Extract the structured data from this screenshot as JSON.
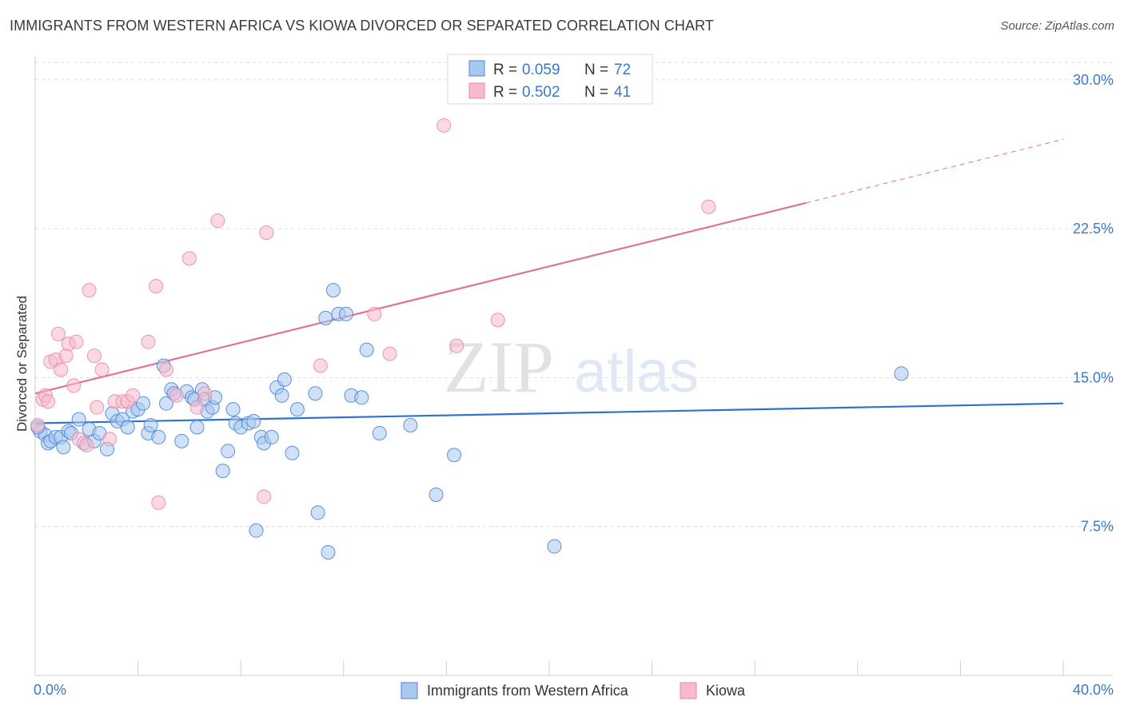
{
  "header": {
    "title": "IMMIGRANTS FROM WESTERN AFRICA VS KIOWA DIVORCED OR SEPARATED CORRELATION CHART",
    "source": "Source: ZipAtlas.com"
  },
  "watermark": {
    "zip": "ZIP",
    "atlas": "atlas"
  },
  "legend": {
    "rows": [
      {
        "r_label": "R = ",
        "r_value": "0.059",
        "n_label": "N = ",
        "n_value": "72"
      },
      {
        "r_label": "R = ",
        "r_value": "0.502",
        "n_label": "N = ",
        "n_value": "41"
      }
    ]
  },
  "chart_data": {
    "type": "scatter",
    "title": "IMMIGRANTS FROM WESTERN AFRICA VS KIOWA DIVORCED OR SEPARATED CORRELATION CHART",
    "xlabel": "",
    "ylabel": "Divorced or Separated",
    "xlim": [
      0,
      40
    ],
    "ylim": [
      0,
      31.2
    ],
    "x_tick_labels": [
      {
        "value": 0,
        "label": "0.0%"
      },
      {
        "value": 40,
        "label": "40.0%"
      }
    ],
    "y_tick_labels": [
      {
        "value": 7.5,
        "label": "7.5%"
      },
      {
        "value": 15.0,
        "label": "15.0%"
      },
      {
        "value": 22.5,
        "label": "22.5%"
      },
      {
        "value": 30.0,
        "label": "30.0%"
      }
    ],
    "grid": true,
    "legend_position": "top-center",
    "colors": {
      "blue_fill": "#a9c8f0",
      "blue_stroke": "#4a86d8",
      "blue_line": "#2f72cc",
      "pink_fill": "#f7b9cc",
      "pink_stroke": "#e88aa8",
      "pink_line": "#e0719a"
    },
    "series": [
      {
        "name": "Immigrants from Western Africa",
        "color": "#4a86d8",
        "trend": {
          "x0": 0,
          "y0": 12.7,
          "x1": 40,
          "y1": 13.7,
          "dash_from": null
        },
        "points": [
          [
            0.2,
            12.3
          ],
          [
            0.4,
            12.1
          ],
          [
            0.5,
            11.7
          ],
          [
            0.6,
            11.8
          ],
          [
            0.8,
            12.0
          ],
          [
            1.0,
            12.0
          ],
          [
            1.1,
            11.5
          ],
          [
            1.3,
            12.3
          ],
          [
            1.4,
            12.2
          ],
          [
            1.7,
            12.9
          ],
          [
            1.9,
            11.7
          ],
          [
            2.1,
            12.4
          ],
          [
            2.3,
            11.8
          ],
          [
            2.5,
            12.2
          ],
          [
            2.8,
            11.4
          ],
          [
            3.0,
            13.2
          ],
          [
            3.2,
            12.8
          ],
          [
            3.4,
            12.9
          ],
          [
            3.6,
            12.5
          ],
          [
            3.8,
            13.3
          ],
          [
            4.0,
            13.4
          ],
          [
            4.2,
            13.7
          ],
          [
            4.4,
            12.2
          ],
          [
            4.5,
            12.6
          ],
          [
            4.8,
            12.0
          ],
          [
            5.0,
            15.6
          ],
          [
            5.1,
            13.7
          ],
          [
            5.3,
            14.4
          ],
          [
            5.4,
            14.2
          ],
          [
            5.7,
            11.8
          ],
          [
            5.9,
            14.3
          ],
          [
            6.1,
            14.0
          ],
          [
            6.2,
            13.9
          ],
          [
            6.3,
            12.5
          ],
          [
            6.5,
            14.4
          ],
          [
            6.6,
            13.9
          ],
          [
            6.7,
            13.3
          ],
          [
            6.9,
            13.5
          ],
          [
            7.0,
            14.0
          ],
          [
            7.3,
            10.3
          ],
          [
            7.5,
            11.3
          ],
          [
            7.7,
            13.4
          ],
          [
            7.8,
            12.7
          ],
          [
            8.0,
            12.5
          ],
          [
            8.3,
            12.7
          ],
          [
            8.5,
            12.8
          ],
          [
            8.6,
            7.3
          ],
          [
            8.8,
            12.0
          ],
          [
            8.9,
            11.7
          ],
          [
            9.2,
            12.0
          ],
          [
            9.4,
            14.5
          ],
          [
            9.6,
            14.1
          ],
          [
            9.7,
            14.9
          ],
          [
            10.0,
            11.2
          ],
          [
            10.2,
            13.4
          ],
          [
            10.9,
            14.2
          ],
          [
            11.0,
            8.2
          ],
          [
            11.3,
            18.0
          ],
          [
            11.4,
            6.2
          ],
          [
            11.6,
            19.4
          ],
          [
            11.8,
            18.2
          ],
          [
            12.1,
            18.2
          ],
          [
            12.3,
            14.1
          ],
          [
            12.7,
            14.0
          ],
          [
            12.9,
            16.4
          ],
          [
            13.4,
            12.2
          ],
          [
            14.6,
            12.6
          ],
          [
            15.6,
            9.1
          ],
          [
            16.3,
            11.1
          ],
          [
            20.2,
            6.5
          ],
          [
            33.7,
            15.2
          ],
          [
            0.1,
            12.5
          ]
        ]
      },
      {
        "name": "Kiowa",
        "color": "#e88aa8",
        "trend": {
          "x0": 0,
          "y0": 14.2,
          "x1": 40,
          "y1": 27.0,
          "dash_from": 30.0
        },
        "points": [
          [
            0.1,
            12.6
          ],
          [
            0.3,
            13.9
          ],
          [
            0.4,
            14.1
          ],
          [
            0.5,
            13.8
          ],
          [
            0.6,
            15.8
          ],
          [
            0.8,
            15.9
          ],
          [
            0.9,
            17.2
          ],
          [
            1.0,
            15.4
          ],
          [
            1.2,
            16.1
          ],
          [
            1.3,
            16.7
          ],
          [
            1.5,
            14.6
          ],
          [
            1.6,
            16.8
          ],
          [
            1.7,
            11.9
          ],
          [
            2.0,
            11.6
          ],
          [
            2.1,
            19.4
          ],
          [
            2.3,
            16.1
          ],
          [
            2.4,
            13.5
          ],
          [
            2.6,
            15.4
          ],
          [
            2.9,
            11.9
          ],
          [
            3.1,
            13.8
          ],
          [
            3.4,
            13.8
          ],
          [
            3.6,
            13.8
          ],
          [
            3.8,
            14.1
          ],
          [
            4.4,
            16.8
          ],
          [
            4.7,
            19.6
          ],
          [
            4.8,
            8.7
          ],
          [
            5.1,
            15.4
          ],
          [
            5.5,
            14.1
          ],
          [
            6.0,
            21.0
          ],
          [
            6.3,
            13.5
          ],
          [
            6.6,
            14.2
          ],
          [
            7.1,
            22.9
          ],
          [
            8.9,
            9.0
          ],
          [
            9.0,
            22.3
          ],
          [
            11.1,
            15.6
          ],
          [
            13.2,
            18.2
          ],
          [
            13.8,
            16.2
          ],
          [
            15.9,
            27.7
          ],
          [
            16.4,
            16.6
          ],
          [
            18.0,
            17.9
          ],
          [
            26.2,
            23.6
          ]
        ]
      }
    ]
  }
}
